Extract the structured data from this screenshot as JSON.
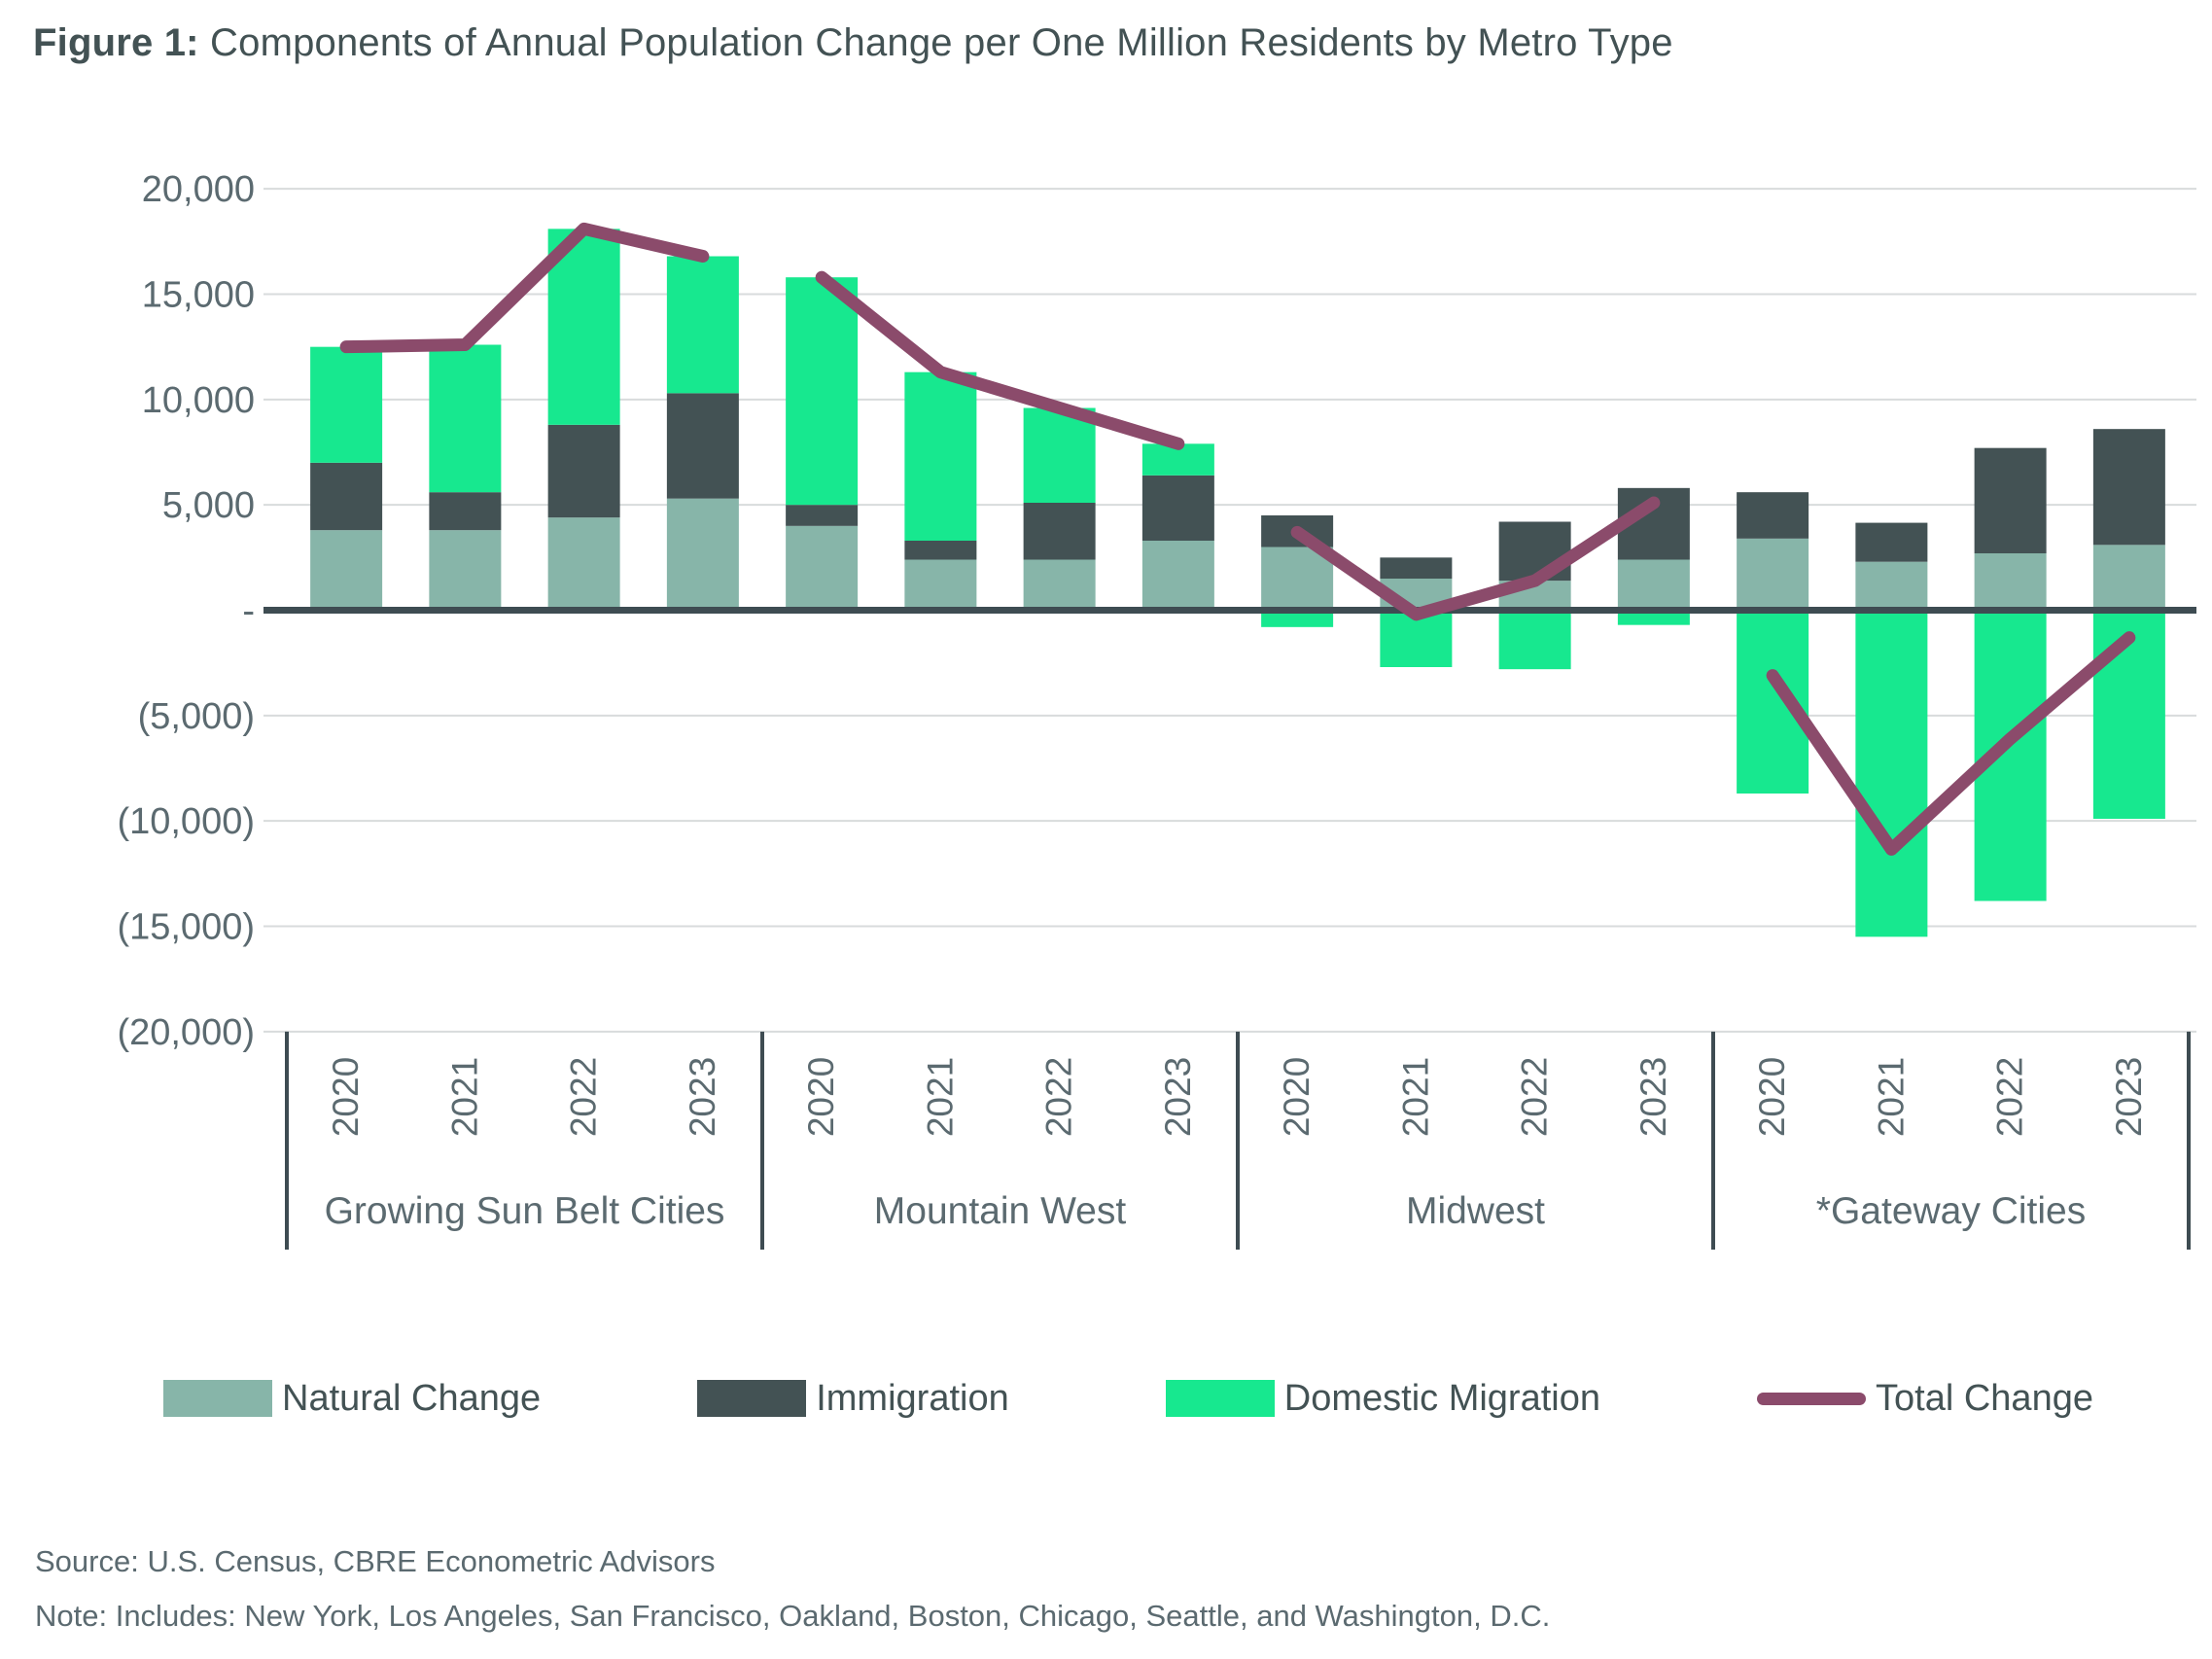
{
  "title": {
    "prefix": "Figure 1:",
    "text": " Components of Annual Population Change per One Million Residents by Metro Type"
  },
  "colors": {
    "natural_change": "#87B5A9",
    "immigration": "#435254",
    "domestic_migration": "#17E88F",
    "total_change": "#8B4B6B",
    "gridline": "#D8DBDC",
    "axis_line": "#3E4C52",
    "label_text": "#5B6A70",
    "title_text": "#435254",
    "background": "#FFFFFF"
  },
  "y_axis": {
    "tick_labels": [
      "20,000",
      "15,000",
      "10,000",
      "5,000",
      "-",
      "(5,000)",
      "(10,000)",
      "(15,000)",
      "(20,000)"
    ],
    "tick_values": [
      20000,
      15000,
      10000,
      5000,
      0,
      -5000,
      -10000,
      -15000,
      -20000
    ],
    "max": 20000,
    "min": -20000,
    "step": 5000
  },
  "legend": {
    "items": [
      {
        "label": "Natural Change",
        "swatch": "box",
        "color_key": "natural_change"
      },
      {
        "label": "Immigration",
        "swatch": "box",
        "color_key": "immigration"
      },
      {
        "label": "Domestic Migration",
        "swatch": "box",
        "color_key": "domestic_migration"
      },
      {
        "label": "Total Change",
        "swatch": "line",
        "color_key": "total_change"
      }
    ]
  },
  "source_line": "Source: U.S. Census, CBRE Econometric Advisors",
  "note_line": "Note: Includes:  New York, Los Angeles, San Francisco, Oakland, Boston, Chicago, Seattle, and Washington, D.C.",
  "chart_data": {
    "type": "bar",
    "subtype": "stacked-bars-with-total-line",
    "title": "Figure 1: Components of Annual Population Change per One Million Residents by Metro Type",
    "xlabel": "",
    "ylabel": "",
    "ylim": [
      -20000,
      20000
    ],
    "grid": true,
    "legend_position": "bottom",
    "years": [
      "2020",
      "2021",
      "2022",
      "2023"
    ],
    "series_names": [
      "Natural Change",
      "Immigration",
      "Domestic Migration",
      "Total Change"
    ],
    "groups": [
      {
        "label": "Growing Sun Belt Cities",
        "natural_change": [
          3800,
          3800,
          4400,
          5300
        ],
        "immigration": [
          3200,
          1800,
          4400,
          5000
        ],
        "domestic_migration": [
          5500,
          7000,
          9300,
          6500
        ],
        "total_change": [
          12500,
          12600,
          18100,
          16800
        ]
      },
      {
        "label": "Mountain West",
        "natural_change": [
          4000,
          2400,
          2400,
          3300
        ],
        "immigration": [
          1000,
          900,
          2700,
          3100
        ],
        "domestic_migration": [
          10800,
          8000,
          4500,
          1500
        ],
        "total_change": [
          15800,
          11300,
          9600,
          7900
        ]
      },
      {
        "label": "Midwest",
        "natural_change": [
          3000,
          1500,
          1400,
          2400
        ],
        "immigration": [
          1500,
          1000,
          2800,
          3400
        ],
        "domestic_migration": [
          -800,
          -2700,
          -2800,
          -700
        ],
        "total_change": [
          3700,
          -200,
          1400,
          5100
        ]
      },
      {
        "label": "*Gateway Cities",
        "natural_change": [
          3400,
          2300,
          2700,
          3100
        ],
        "immigration": [
          2200,
          1850,
          5000,
          5500
        ],
        "domestic_migration": [
          -8700,
          -15500,
          -13800,
          -9900
        ],
        "total_change": [
          -3100,
          -11350,
          -6100,
          -1300
        ]
      }
    ]
  }
}
